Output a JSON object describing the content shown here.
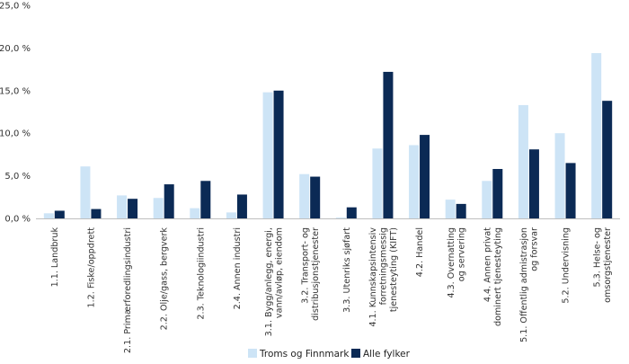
{
  "chart_data": {
    "type": "bar",
    "title": "",
    "xlabel": "",
    "ylabel": "",
    "ylim": [
      0,
      25
    ],
    "yticks": [
      0,
      5,
      10,
      15,
      20,
      25
    ],
    "ytick_labels": [
      "0,0 %",
      "5,0 %",
      "10,0 %",
      "15,0 %",
      "20,0 %",
      "25,0 %"
    ],
    "grid": false,
    "legend_position": "bottom",
    "categories": [
      [
        "1.1. Landbruk"
      ],
      [
        "1.2. Fiske/oppdrett"
      ],
      [
        "2.1. Primærforedlingsindustri"
      ],
      [
        "2.2. Olje/gass, bergverk"
      ],
      [
        "2.3. Teknologiindustri"
      ],
      [
        "2.4. Annen industri"
      ],
      [
        "3.1. Bygg/anlegg, energi,",
        "vann/avløp, eiendom"
      ],
      [
        "3.2. Transport- og",
        "distribusjonstjenester"
      ],
      [
        "3.3. Utenriks sjøfart"
      ],
      [
        "4.1. Kunnskapsintensiv",
        "forretningsmessig",
        "tjenesteyting (KIFT)"
      ],
      [
        "4.2. Handel"
      ],
      [
        "4.3. Overnatting",
        "og servering"
      ],
      [
        "4.4. Annen privat",
        "dominert tjenesteyting"
      ],
      [
        "5.1. Offentlig admistrasjon",
        "og forsvar"
      ],
      [
        "5.2. Undervisning"
      ],
      [
        "5.3. Helse- og",
        "omsorgstjenester"
      ]
    ],
    "series": [
      {
        "name": "Troms og Finnmark",
        "color": "#cde4f6",
        "values": [
          0.6,
          6.1,
          2.7,
          2.4,
          1.2,
          0.7,
          14.8,
          5.2,
          0.1,
          8.2,
          8.6,
          2.2,
          4.4,
          13.3,
          10.0,
          19.4
        ]
      },
      {
        "name": "Alle fylker",
        "color": "#0b2a55",
        "values": [
          0.9,
          1.1,
          2.3,
          4.0,
          4.4,
          2.8,
          15.0,
          4.9,
          1.3,
          17.2,
          9.8,
          1.7,
          5.8,
          8.1,
          6.5,
          13.8
        ]
      }
    ]
  }
}
